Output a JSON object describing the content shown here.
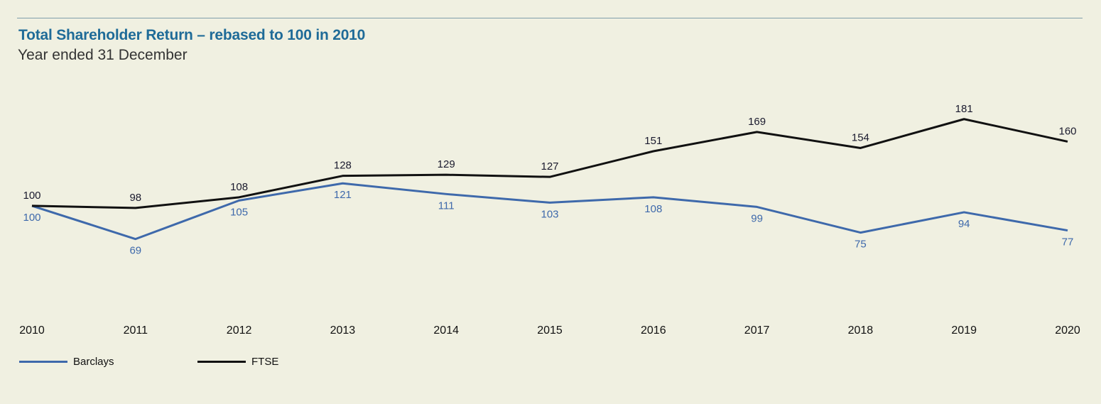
{
  "chart_data": {
    "type": "line",
    "title": "Total Shareholder Return – rebased to 100 in 2010",
    "subtitle": "Year ended 31 December",
    "x": [
      "2010",
      "2011",
      "2012",
      "2013",
      "2014",
      "2015",
      "2016",
      "2017",
      "2018",
      "2019",
      "2020"
    ],
    "series": [
      {
        "name": "Barclays",
        "color": "#3e69ab",
        "values": [
          100,
          69,
          105,
          121,
          111,
          103,
          108,
          99,
          75,
          94,
          77
        ]
      },
      {
        "name": "FTSE",
        "color": "#111111",
        "values": [
          100,
          98,
          108,
          128,
          129,
          127,
          151,
          169,
          154,
          181,
          160
        ]
      }
    ],
    "ylim": [
      50,
      200
    ],
    "grid": false,
    "legend": "bottom-left"
  }
}
